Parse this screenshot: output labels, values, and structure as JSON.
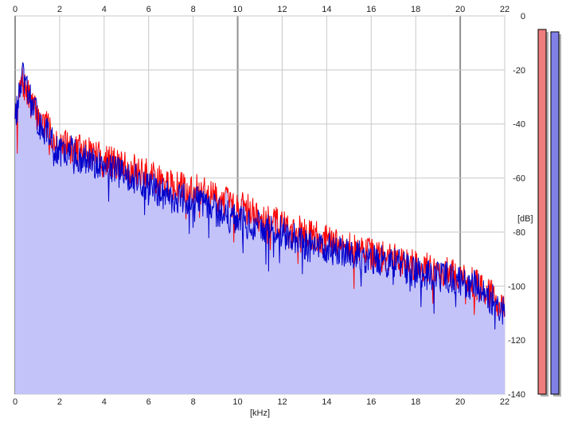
{
  "colors": {
    "background": "#ffffff",
    "plot_background": "#ffffff",
    "grid": "#c8c8c8",
    "grid_major": "#909090",
    "left_channel": "#ff0000",
    "right_channel": "#0000cc",
    "fill": "#c3c3fa",
    "meter_left": "#ee7d7d",
    "meter_right": "#8080e6"
  },
  "chart_data": {
    "type": "area",
    "title": "",
    "xlabel": "[kHz]",
    "ylabel": "[dB]",
    "xlim": [
      0,
      22
    ],
    "ylim": [
      -140,
      0
    ],
    "x_ticks": [
      "0",
      "2",
      "4",
      "6",
      "8",
      "10",
      "12",
      "14",
      "16",
      "18",
      "20",
      "22"
    ],
    "y_ticks": [
      "0",
      "-20",
      "-40",
      "-60",
      "-80",
      "-100",
      "-120",
      "-140"
    ],
    "grid": true,
    "legend": "none",
    "series": [
      {
        "color": "#ff0000",
        "x": [
          0.1,
          0.3,
          0.6,
          1.0,
          1.5,
          2.0,
          2.5,
          3.0,
          3.5,
          4.0,
          5.0,
          6.0,
          7.0,
          8.0,
          9.0,
          10.0,
          11.0,
          12.0,
          13.0,
          14.0,
          15.0,
          16.0,
          17.0,
          18.0,
          19.0,
          20.0,
          21.0,
          22.0
        ],
        "values": [
          -34,
          -24,
          -30,
          -37,
          -42,
          -47,
          -49,
          -50,
          -51,
          -53,
          -56,
          -59,
          -63,
          -64,
          -67,
          -70,
          -74,
          -77,
          -80,
          -83,
          -86,
          -88,
          -90,
          -92,
          -94,
          -97,
          -100,
          -108
        ]
      },
      {
        "color": "#0000cc",
        "x": [
          0.1,
          0.3,
          0.6,
          1.0,
          1.5,
          2.0,
          2.5,
          3.0,
          3.5,
          4.0,
          5.0,
          6.0,
          7.0,
          8.0,
          9.0,
          10.0,
          11.0,
          12.0,
          13.0,
          14.0,
          15.0,
          16.0,
          17.0,
          18.0,
          19.0,
          20.0,
          21.0,
          22.0
        ],
        "values": [
          -35,
          -22,
          -29,
          -38,
          -44,
          -51,
          -50,
          -53,
          -54,
          -56,
          -59,
          -63,
          -67,
          -68,
          -72,
          -76,
          -78,
          -80,
          -84,
          -86,
          -88,
          -90,
          -91,
          -95,
          -96,
          -98,
          -101,
          -110
        ]
      }
    ],
    "peak_meters": [
      {
        "color": "#ee7d7d",
        "level_db": 0
      },
      {
        "color": "#8080e6",
        "level_db": 0
      }
    ]
  }
}
